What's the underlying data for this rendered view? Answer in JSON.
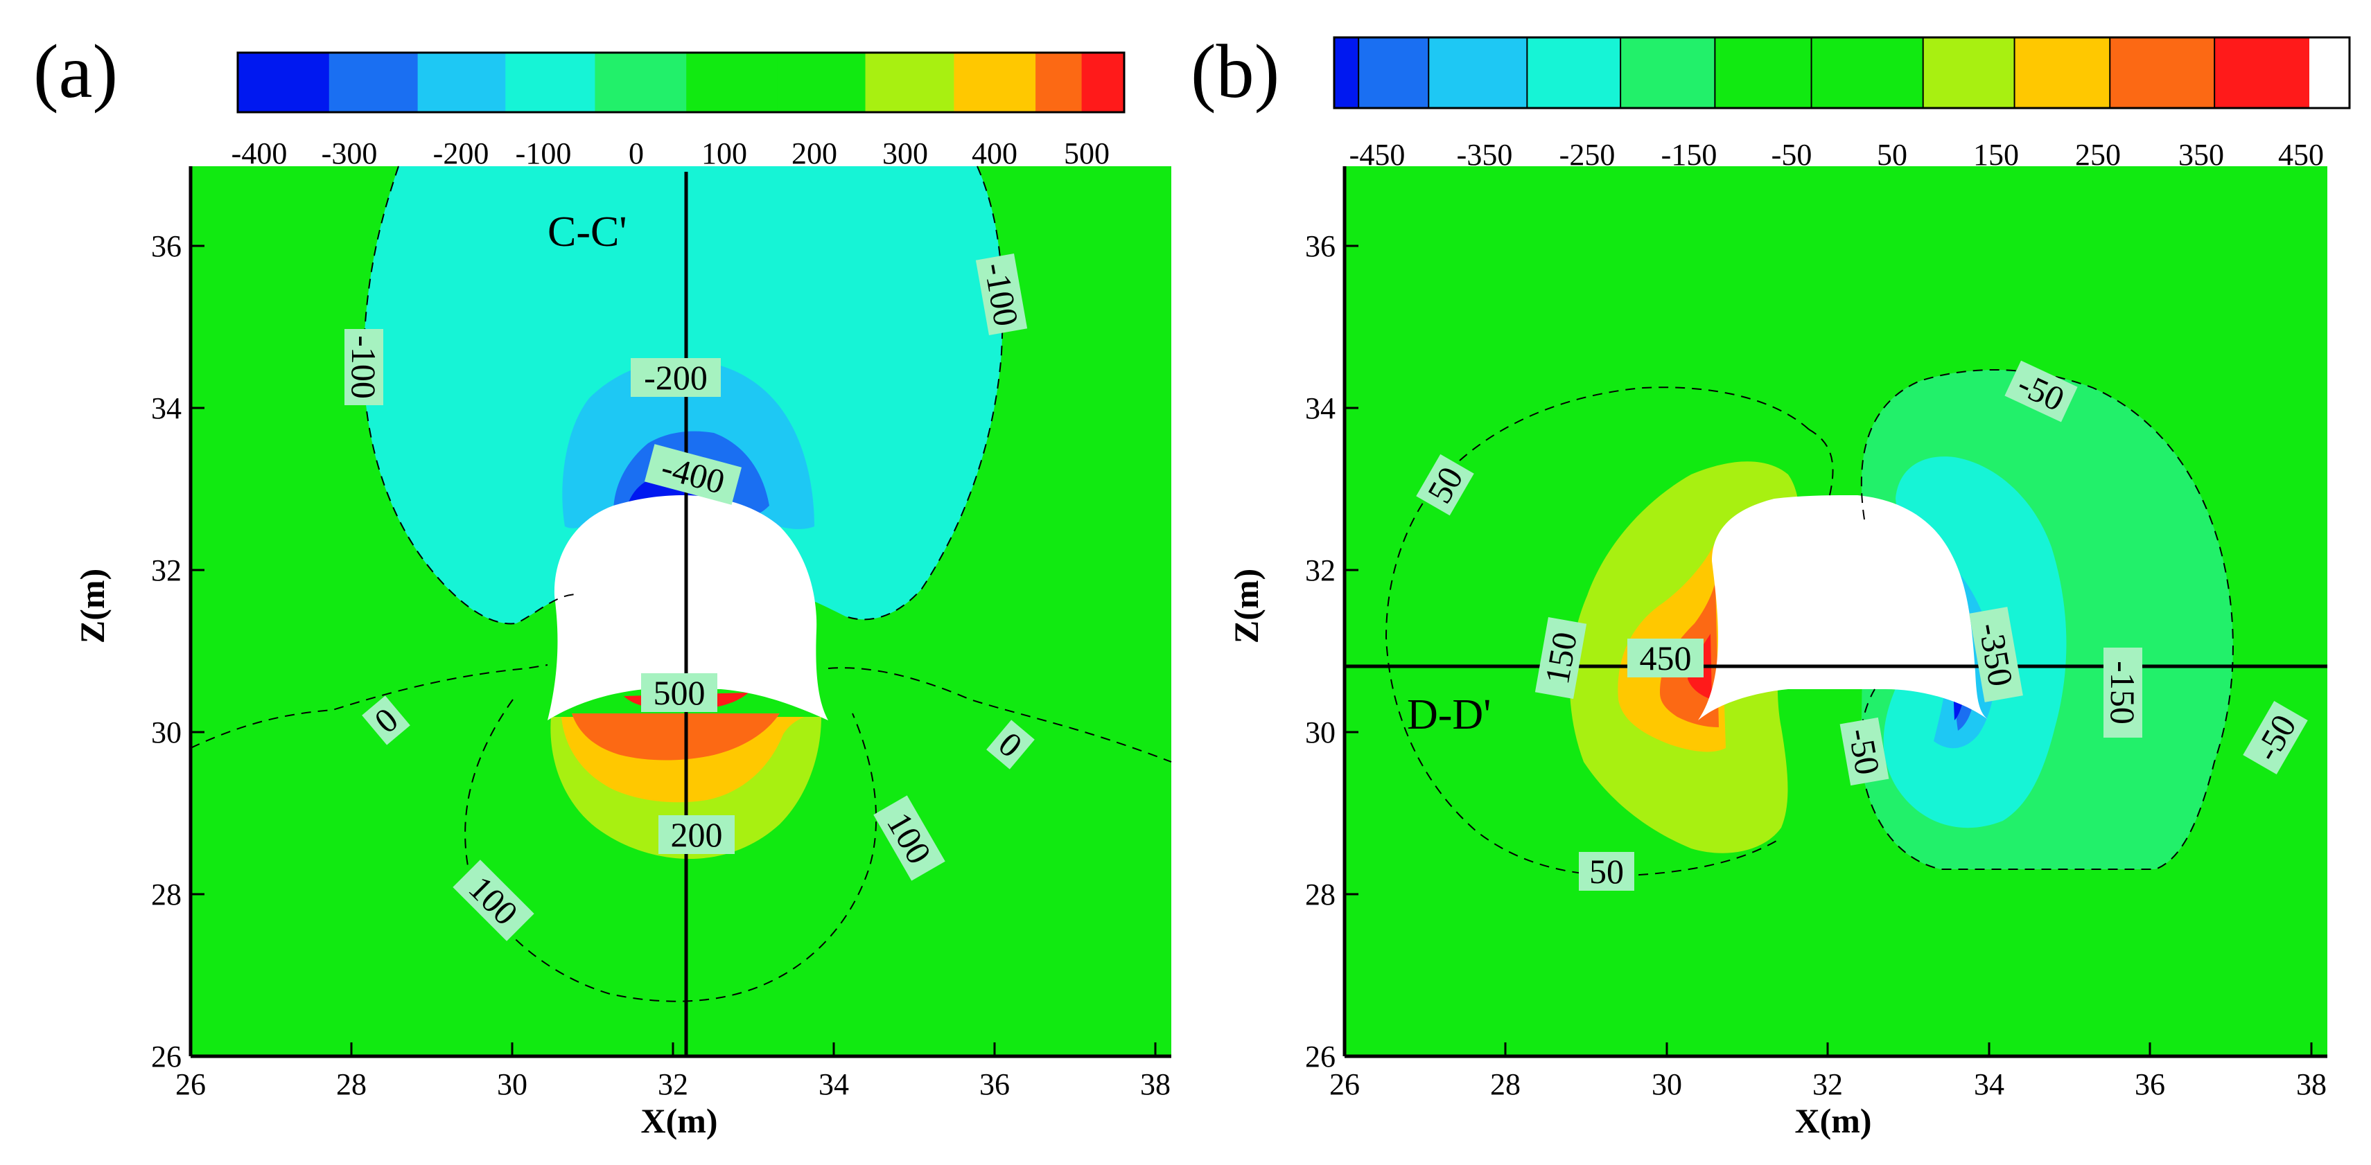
{
  "colors": {
    "deep_blue": "#0018f0",
    "blue": "#1a6ff2",
    "light_blue": "#1ec8f4",
    "cyan": "#16f4d6",
    "light_green": "#22f06a",
    "green": "#11ea11",
    "yellow_green": "#a8f011",
    "yellow": "#ffc800",
    "orange": "#fc6914",
    "red": "#ff1a1a",
    "white": "#ffffff",
    "label_bg": "#a6f2c0",
    "line": "#000000"
  },
  "chart_data": [
    {
      "type": "contour",
      "panel_label": "(a)",
      "xlabel": "X(m)",
      "ylabel": "Z(m)",
      "xlim": [
        26,
        38.2
      ],
      "ylim": [
        26,
        37
      ],
      "x_ticks": [
        "26",
        "28",
        "30",
        "32",
        "34",
        "36",
        "38"
      ],
      "y_ticks": [
        "26",
        "28",
        "30",
        "32",
        "34",
        "36"
      ],
      "colorbar": {
        "ticks": [
          "-400",
          "-300",
          "-200",
          "-100",
          "0",
          "100",
          "200",
          "300",
          "400",
          "500"
        ],
        "colors": [
          "#0018f0",
          "#1a6ff2",
          "#1ec8f4",
          "#16f4d6",
          "#22f06a",
          "#11ea11",
          "#11ea11",
          "#a8f011",
          "#ffc800",
          "#fc6914",
          "#ff1a1a"
        ]
      },
      "contour_labels": [
        {
          "text": "-100",
          "x": 27.9,
          "y": 34.2,
          "rotation": 90
        },
        {
          "text": "-100",
          "x": 36.1,
          "y": 35.5,
          "rotation": 80
        },
        {
          "text": "-200",
          "x": 32.0,
          "y": 34.4,
          "rotation": 0
        },
        {
          "text": "-400",
          "x": 32.2,
          "y": 33.2,
          "rotation": 15
        },
        {
          "text": "500",
          "x": 31.9,
          "y": 30.5,
          "rotation": 0
        },
        {
          "text": "200",
          "x": 32.2,
          "y": 28.7,
          "rotation": 0
        },
        {
          "text": "0",
          "x": 28.4,
          "y": 30.2,
          "rotation": -40
        },
        {
          "text": "0",
          "x": 36.2,
          "y": 29.8,
          "rotation": 40
        },
        {
          "text": "100",
          "x": 35.0,
          "y": 28.6,
          "rotation": 60
        },
        {
          "text": "100",
          "x": 29.1,
          "y": 27.8,
          "rotation": 45
        }
      ],
      "section_line": {
        "label": "C-C'",
        "orientation": "vertical",
        "x": 32.0,
        "label_x": 31.1,
        "label_y": 35.9
      }
    },
    {
      "type": "contour",
      "panel_label": "(b)",
      "xlabel": "X(m)",
      "ylabel": "Z(m)",
      "xlim": [
        26,
        38.2
      ],
      "ylim": [
        26,
        37
      ],
      "x_ticks": [
        "26",
        "28",
        "30",
        "32",
        "34",
        "36",
        "38"
      ],
      "y_ticks": [
        "26",
        "28",
        "30",
        "32",
        "34",
        "36"
      ],
      "colorbar": {
        "ticks": [
          "-450",
          "-350",
          "-250",
          "-150",
          "-50",
          "50",
          "150",
          "250",
          "350",
          "450"
        ],
        "colors": [
          "#0018f0",
          "#1a6ff2",
          "#1ec8f4",
          "#16f4d6",
          "#22f06a",
          "#11ea11",
          "#11ea11",
          "#a8f011",
          "#ffc800",
          "#fc6914",
          "#ff1a1a"
        ]
      },
      "contour_labels": [
        {
          "text": "-50",
          "x": 35.0,
          "y": 34.2,
          "rotation": 25
        },
        {
          "text": "50",
          "x": 27.2,
          "y": 33.1,
          "rotation": -60
        },
        {
          "text": "150",
          "x": 28.7,
          "y": 30.9,
          "rotation": -80
        },
        {
          "text": "450",
          "x": 30.0,
          "y": 30.8,
          "rotation": 0
        },
        {
          "text": "-350",
          "x": 34.0,
          "y": 31.1,
          "rotation": 80
        },
        {
          "text": "-150",
          "x": 35.6,
          "y": 30.5,
          "rotation": 90
        },
        {
          "text": "-50",
          "x": 32.8,
          "y": 29.6,
          "rotation": 80
        },
        {
          "text": "-50",
          "x": 37.9,
          "y": 30.0,
          "rotation": -60
        },
        {
          "text": "50",
          "x": 29.2,
          "y": 28.3,
          "rotation": 0
        }
      ],
      "section_line": {
        "label": "D-D'",
        "orientation": "horizontal",
        "y": 30.8,
        "label_x": 27.1,
        "label_y": 30.3
      }
    }
  ]
}
